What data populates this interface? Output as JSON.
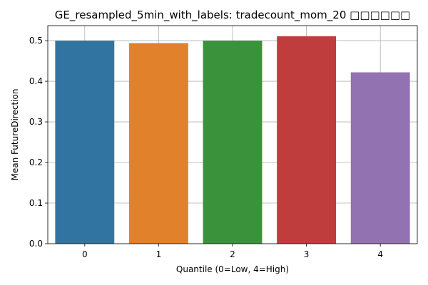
{
  "chart_data": {
    "type": "bar",
    "title": "GE_resampled_5min_with_labels: tradecount_mom_20 □□□□□□",
    "xlabel": "Quantile (0=Low, 4=High)",
    "ylabel": "Mean FutureDirection",
    "categories": [
      "0",
      "1",
      "2",
      "3",
      "4"
    ],
    "values": [
      0.5,
      0.494,
      0.5,
      0.511,
      0.422
    ],
    "colors": [
      "#3274a1",
      "#e1812c",
      "#3a923a",
      "#c03d3e",
      "#9372b2"
    ],
    "ylim": [
      0,
      0.537
    ],
    "yticks": [
      0.0,
      0.1,
      0.2,
      0.3,
      0.4,
      0.5
    ],
    "ytick_labels": [
      "0.0",
      "0.1",
      "0.2",
      "0.3",
      "0.4",
      "0.5"
    ],
    "grid": true
  }
}
